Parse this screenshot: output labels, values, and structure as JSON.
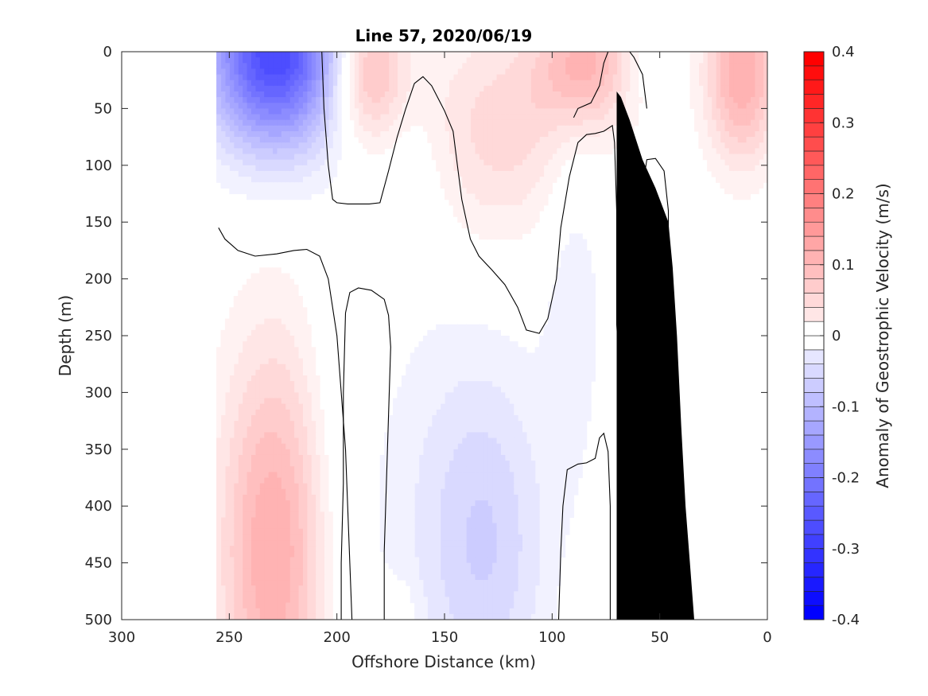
{
  "chart_data": {
    "type": "heatmap",
    "title": "Line 57, 2020/06/19",
    "xlabel": "Offshore Distance (km)",
    "ylabel": "Depth (m)",
    "colorbar_label": "Anomaly of Geostrophic Velocity (m/s)",
    "xlim": [
      300,
      0
    ],
    "ylim": [
      0,
      500
    ],
    "x_reversed": true,
    "y_reversed": true,
    "x_ticks": [
      300,
      250,
      200,
      150,
      100,
      50,
      0
    ],
    "y_ticks": [
      0,
      50,
      100,
      150,
      200,
      250,
      300,
      350,
      400,
      450,
      500
    ],
    "colorbar_range": [
      -0.4,
      0.4
    ],
    "colorbar_step": 0.02,
    "colorbar_ticks": [
      "0.4",
      "0.3",
      "0.2",
      "0.1",
      "0",
      "-0.1",
      "-0.2",
      "-0.3",
      "-0.4"
    ],
    "colorbar_tick_values": [
      0.4,
      0.3,
      0.2,
      0.1,
      0,
      -0.1,
      -0.2,
      -0.3,
      -0.4
    ],
    "data_x_range": [
      0,
      255
    ],
    "colors": {
      "positive": "#ff0000",
      "negative": "#0000ff",
      "neutral": "#ffffff",
      "bathymetry": "#000000",
      "contour": "#000000"
    },
    "anomaly_features": [
      {
        "x": 229,
        "depth": 0,
        "value": -0.3,
        "sx": 22,
        "sz": 60
      },
      {
        "x": 186,
        "depth": 15,
        "value": 0.13,
        "sx": 12,
        "sz": 45
      },
      {
        "x": 85,
        "depth": 10,
        "value": 0.12,
        "sx": 16,
        "sz": 40
      },
      {
        "x": 125,
        "depth": 70,
        "value": 0.07,
        "sx": 28,
        "sz": 70
      },
      {
        "x": 12,
        "depth": 20,
        "value": 0.14,
        "sx": 12,
        "sz": 55
      },
      {
        "x": 62,
        "depth": 15,
        "value": -0.02,
        "sx": 6,
        "sz": 20
      },
      {
        "x": 230,
        "depth": 440,
        "value": 0.14,
        "sx": 18,
        "sz": 130
      },
      {
        "x": 200,
        "depth": 350,
        "value": -0.02,
        "sx": 10,
        "sz": 130
      },
      {
        "x": 165,
        "depth": 120,
        "value": -0.025,
        "sx": 12,
        "sz": 60
      },
      {
        "x": 130,
        "depth": 440,
        "value": -0.06,
        "sx": 20,
        "sz": 110
      },
      {
        "x": 150,
        "depth": 400,
        "value": -0.03,
        "sx": 30,
        "sz": 130
      },
      {
        "x": 90,
        "depth": 200,
        "value": -0.035,
        "sx": 10,
        "sz": 120
      },
      {
        "x": 80,
        "depth": 480,
        "value": 0.025,
        "sx": 8,
        "sz": 30
      },
      {
        "x": 170,
        "depth": 490,
        "value": 0.02,
        "sx": 6,
        "sz": 20
      },
      {
        "x": 55,
        "depth": 470,
        "value": -0.03,
        "sx": 6,
        "sz": 50
      }
    ],
    "zero_contours": [
      [
        [
          207,
          0
        ],
        [
          206,
          50
        ],
        [
          204,
          100
        ],
        [
          202,
          130
        ],
        [
          200,
          133
        ],
        [
          195,
          134
        ],
        [
          190,
          134
        ],
        [
          185,
          134
        ],
        [
          180,
          133
        ],
        [
          176,
          105
        ],
        [
          172,
          75
        ],
        [
          168,
          50
        ],
        [
          164,
          28
        ],
        [
          160,
          22
        ],
        [
          156,
          30
        ],
        [
          150,
          52
        ],
        [
          146,
          70
        ],
        [
          144,
          100
        ],
        [
          142,
          130
        ],
        [
          138,
          165
        ],
        [
          134,
          180
        ],
        [
          128,
          192
        ],
        [
          122,
          205
        ],
        [
          116,
          225
        ],
        [
          112,
          245
        ],
        [
          106,
          248
        ],
        [
          102,
          235
        ],
        [
          98,
          200
        ],
        [
          96,
          155
        ],
        [
          92,
          110
        ],
        [
          88,
          80
        ],
        [
          84,
          73
        ],
        [
          80,
          72
        ],
        [
          76,
          70
        ],
        [
          72,
          65
        ],
        [
          71,
          80
        ],
        [
          70,
          140
        ],
        [
          70,
          195
        ],
        [
          70,
          240
        ],
        [
          69,
          270
        ],
        [
          68,
          287
        ],
        [
          62,
          288
        ],
        [
          58,
          288
        ],
        [
          54,
          296
        ],
        [
          50,
          278
        ],
        [
          48,
          250
        ],
        [
          46,
          200
        ],
        [
          46,
          140
        ],
        [
          48,
          105
        ],
        [
          52,
          94
        ],
        [
          56,
          95
        ],
        [
          58,
          120
        ],
        [
          62,
          160
        ],
        [
          66,
          178
        ],
        [
          70,
          200
        ],
        [
          70,
          210
        ]
      ],
      [
        [
          255,
          155
        ],
        [
          252,
          165
        ],
        [
          246,
          175
        ],
        [
          238,
          180
        ],
        [
          228,
          178
        ],
        [
          220,
          175
        ],
        [
          214,
          174
        ],
        [
          208,
          180
        ],
        [
          204,
          200
        ],
        [
          200,
          250
        ],
        [
          198,
          300
        ],
        [
          196,
          350
        ],
        [
          195,
          400
        ],
        [
          194,
          450
        ],
        [
          193,
          500
        ]
      ],
      [
        [
          178,
          500
        ],
        [
          178,
          440
        ],
        [
          177,
          380
        ],
        [
          176,
          320
        ],
        [
          175,
          260
        ],
        [
          176,
          232
        ],
        [
          178,
          218
        ],
        [
          184,
          210
        ],
        [
          190,
          208
        ],
        [
          194,
          212
        ],
        [
          196,
          230
        ],
        [
          197,
          300
        ],
        [
          197,
          380
        ],
        [
          198,
          450
        ],
        [
          198,
          500
        ]
      ],
      [
        [
          56,
          50
        ],
        [
          58,
          20
        ],
        [
          62,
          5
        ],
        [
          64,
          0
        ]
      ],
      [
        [
          74,
          0
        ],
        [
          76,
          10
        ],
        [
          78,
          30
        ],
        [
          82,
          45
        ],
        [
          88,
          50
        ],
        [
          90,
          58
        ]
      ],
      [
        [
          97,
          500
        ],
        [
          96,
          440
        ],
        [
          95,
          400
        ],
        [
          93,
          368
        ],
        [
          88,
          363
        ],
        [
          84,
          362
        ],
        [
          80,
          358
        ],
        [
          78,
          340
        ],
        [
          76,
          336
        ],
        [
          74,
          352
        ],
        [
          73,
          400
        ],
        [
          73,
          450
        ],
        [
          73,
          500
        ]
      ]
    ],
    "bathymetry": [
      [
        34,
        500
      ],
      [
        36,
        450
      ],
      [
        38,
        400
      ],
      [
        40,
        330
      ],
      [
        42,
        250
      ],
      [
        44,
        190
      ],
      [
        46,
        150
      ],
      [
        48,
        140
      ],
      [
        52,
        120
      ],
      [
        58,
        95
      ],
      [
        64,
        60
      ],
      [
        68,
        40
      ],
      [
        70,
        35
      ],
      [
        70,
        500
      ]
    ]
  }
}
